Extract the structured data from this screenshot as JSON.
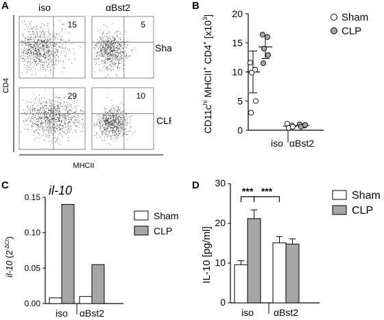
{
  "panels": {
    "A": "A",
    "B": "B",
    "C": "C",
    "D": "D"
  },
  "chart_data": [
    {
      "panel": "A",
      "type": "scatter",
      "column_labels": [
        "iso",
        "αBst2"
      ],
      "row_labels": [
        "Sham",
        "CLP"
      ],
      "xlabel": "MHCII",
      "ylabel": "CD4",
      "quadrant_values": [
        {
          "group": "iso",
          "row": "Sham",
          "value": "15"
        },
        {
          "group": "αBst2",
          "row": "Sham",
          "value": "5"
        },
        {
          "group": "iso",
          "row": "CLP",
          "value": "29"
        },
        {
          "group": "αBst2",
          "row": "CLP",
          "value": "10"
        }
      ]
    },
    {
      "panel": "B",
      "type": "scatter",
      "ylabel_parts": [
        "CD11c",
        "hi",
        " MHCII",
        "+",
        " CD4",
        "+",
        " [x10",
        "3",
        "]"
      ],
      "ylim": [
        0,
        20
      ],
      "yticks": [
        "0",
        "5",
        "10",
        "15",
        "20"
      ],
      "categories": [
        "iso",
        "αBst2"
      ],
      "series": [
        {
          "name": "Sham",
          "points": [
            [
              0,
              11.6
            ],
            [
              0,
              10.4
            ],
            [
              0,
              9.9
            ],
            [
              0,
              5.0
            ],
            [
              0,
              3.0
            ],
            [
              1,
              1.1
            ],
            [
              1,
              0.8
            ],
            [
              1,
              0.4
            ],
            [
              1,
              0.6
            ]
          ],
          "mean": [
            10.0,
            0.7
          ],
          "sd": [
            3.6,
            0.3
          ]
        },
        {
          "name": "CLP",
          "points": [
            [
              0,
              16.4
            ],
            [
              0,
              16.0
            ],
            [
              0,
              14.0
            ],
            [
              0,
              12.9
            ],
            [
              0,
              11.5
            ],
            [
              1,
              1.0
            ],
            [
              1,
              0.8
            ],
            [
              1,
              0.6
            ],
            [
              1,
              0.9
            ]
          ],
          "mean": [
            14.3,
            0.8
          ],
          "sd": [
            2.0,
            0.2
          ]
        }
      ]
    },
    {
      "panel": "C",
      "type": "bar",
      "title": "il-10",
      "ylabel_main": "il-10",
      "ylabel_paren": " (2",
      "ylabel_sup": "-ΔCt",
      "ylabel_close": ")",
      "ylim": [
        0,
        0.15
      ],
      "yticks": [
        "0.00",
        "0.05",
        "0.10",
        "0.15"
      ],
      "categories": [
        "iso",
        "αBst2"
      ],
      "series": [
        {
          "name": "Sham",
          "values": [
            0.008,
            0.01
          ]
        },
        {
          "name": "CLP",
          "values": [
            0.14,
            0.055
          ]
        }
      ]
    },
    {
      "panel": "D",
      "type": "bar",
      "ylabel": "IL-10 [pg/ml]",
      "ylim": [
        0,
        30
      ],
      "yticks": [
        "0",
        "10",
        "20",
        "30"
      ],
      "categories": [
        "iso",
        "αBst2"
      ],
      "series": [
        {
          "name": "Sham",
          "values": [
            9.6,
            15.1
          ],
          "errors": [
            1.0,
            1.6
          ]
        },
        {
          "name": "CLP",
          "values": [
            21.2,
            14.8
          ],
          "errors": [
            2.2,
            1.3
          ]
        }
      ],
      "significance": [
        "***",
        "***"
      ]
    }
  ],
  "colors": {
    "sham": "#ffffff",
    "clp": "#a6a6a6",
    "axis": "#000000",
    "gate": "#666666",
    "dots": "#333333"
  }
}
